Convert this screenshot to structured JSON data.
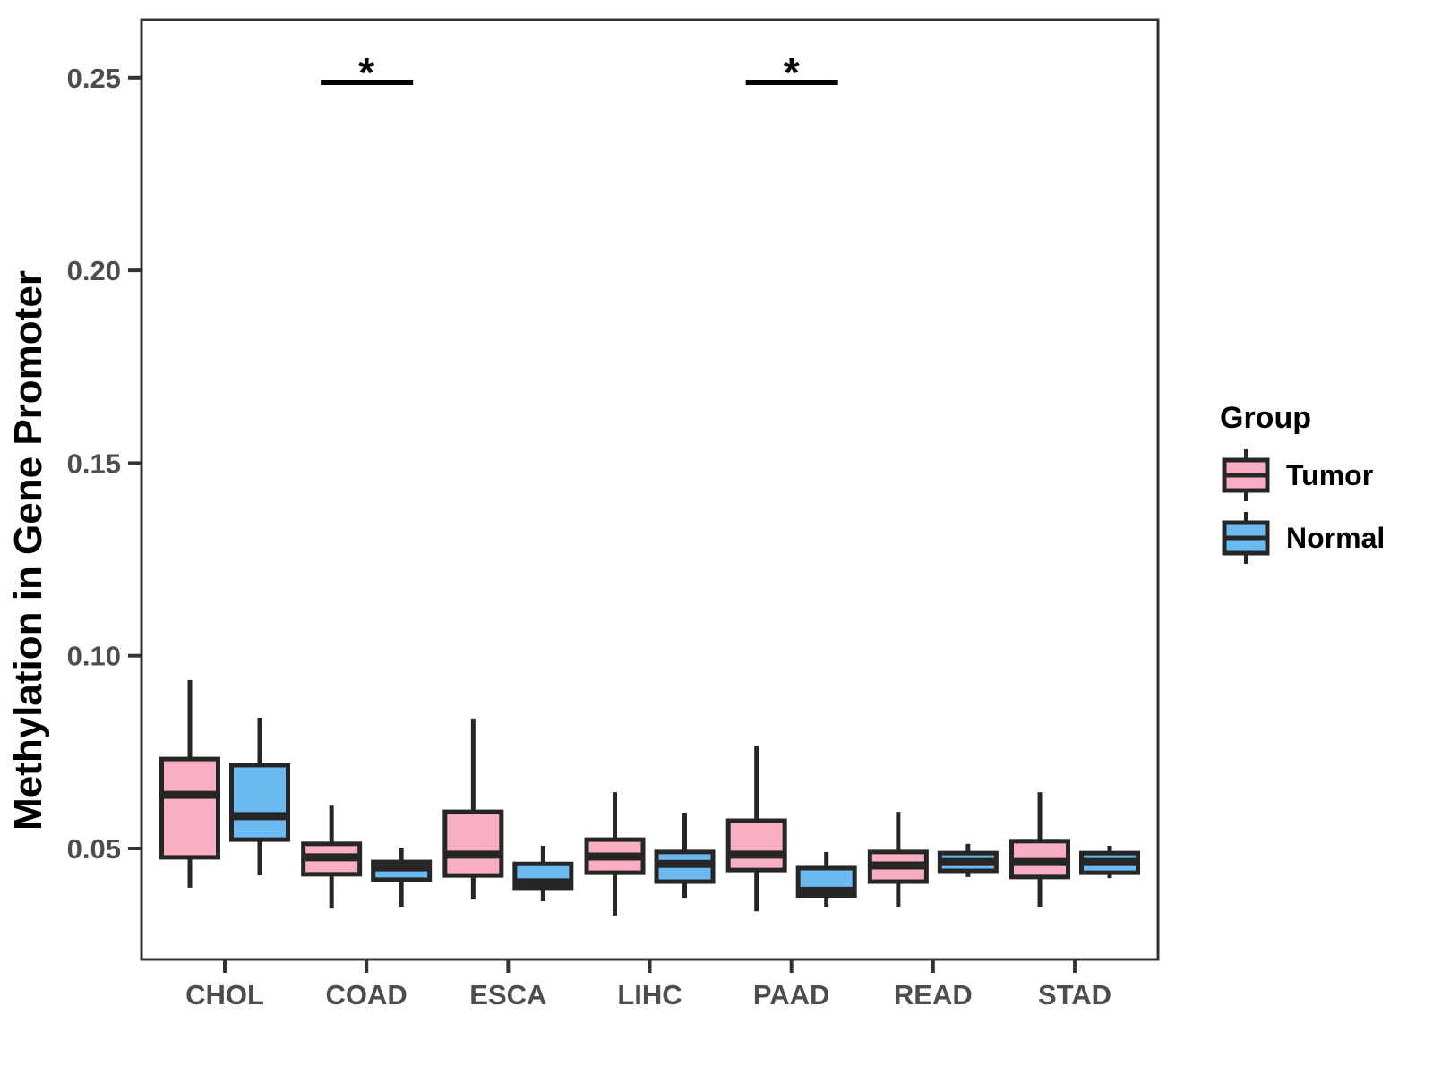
{
  "chart_data": {
    "type": "boxplot",
    "title": "",
    "xlabel": "",
    "ylabel": "Methylation in Gene Promoter",
    "categories": [
      "CHOL",
      "COAD",
      "ESCA",
      "LIHC",
      "PAAD",
      "READ",
      "STAD"
    ],
    "y_ticks": [
      {
        "value": 0.05,
        "label": "0.05"
      },
      {
        "value": 0.1,
        "label": "0.10"
      },
      {
        "value": 0.15,
        "label": "0.15"
      },
      {
        "value": 0.2,
        "label": "0.20"
      },
      {
        "value": 0.25,
        "label": "0.25"
      }
    ],
    "ylim": [
      0.021,
      0.266
    ],
    "grid": false,
    "legend": {
      "title": "Group",
      "position": "right",
      "entries": [
        {
          "label": "Tumor",
          "color": "#F9AFC1"
        },
        {
          "label": "Normal",
          "color": "#6CBAF2"
        }
      ]
    },
    "series": [
      {
        "name": "Tumor",
        "color": "#F9AFC1",
        "boxes": [
          {
            "category": "CHOL",
            "whisker_low": 0.0398,
            "q1": 0.0477,
            "median": 0.0639,
            "q3": 0.0732,
            "whisker_high": 0.0937
          },
          {
            "category": "COAD",
            "whisker_low": 0.0344,
            "q1": 0.0433,
            "median": 0.0477,
            "q3": 0.0512,
            "whisker_high": 0.0611
          },
          {
            "category": "ESCA",
            "whisker_low": 0.0368,
            "q1": 0.043,
            "median": 0.0484,
            "q3": 0.0595,
            "whisker_high": 0.0837
          },
          {
            "category": "LIHC",
            "whisker_low": 0.0326,
            "q1": 0.0437,
            "median": 0.0479,
            "q3": 0.0523,
            "whisker_high": 0.0646
          },
          {
            "category": "PAAD",
            "whisker_low": 0.0337,
            "q1": 0.0444,
            "median": 0.0484,
            "q3": 0.0572,
            "whisker_high": 0.0767
          },
          {
            "category": "READ",
            "whisker_low": 0.0349,
            "q1": 0.0414,
            "median": 0.0456,
            "q3": 0.0491,
            "whisker_high": 0.0595
          },
          {
            "category": "STAD",
            "whisker_low": 0.0349,
            "q1": 0.0426,
            "median": 0.0465,
            "q3": 0.0519,
            "whisker_high": 0.0646
          }
        ]
      },
      {
        "name": "Normal",
        "color": "#6CBAF2",
        "boxes": [
          {
            "category": "CHOL",
            "whisker_low": 0.043,
            "q1": 0.0523,
            "median": 0.0584,
            "q3": 0.0716,
            "whisker_high": 0.0839
          },
          {
            "category": "COAD",
            "whisker_low": 0.0349,
            "q1": 0.0419,
            "median": 0.0451,
            "q3": 0.0465,
            "whisker_high": 0.0502
          },
          {
            "category": "ESCA",
            "whisker_low": 0.0363,
            "q1": 0.0398,
            "median": 0.0412,
            "q3": 0.046,
            "whisker_high": 0.0507
          },
          {
            "category": "LIHC",
            "whisker_low": 0.0372,
            "q1": 0.0414,
            "median": 0.046,
            "q3": 0.0491,
            "whisker_high": 0.0593
          },
          {
            "category": "PAAD",
            "whisker_low": 0.0349,
            "q1": 0.0378,
            "median": 0.039,
            "q3": 0.0449,
            "whisker_high": 0.0491
          },
          {
            "category": "READ",
            "whisker_low": 0.0426,
            "q1": 0.0442,
            "median": 0.0465,
            "q3": 0.0488,
            "whisker_high": 0.0512
          },
          {
            "category": "STAD",
            "whisker_low": 0.0423,
            "q1": 0.0437,
            "median": 0.0465,
            "q3": 0.0488,
            "whisker_high": 0.0507
          }
        ]
      }
    ],
    "significance": [
      {
        "category": "COAD",
        "label": "*"
      },
      {
        "category": "PAAD",
        "label": "*"
      }
    ],
    "colors": {
      "box_outline": "#262626",
      "axis": "#333333",
      "tick_text": "#4d4d4d",
      "sig": "#000000"
    }
  }
}
